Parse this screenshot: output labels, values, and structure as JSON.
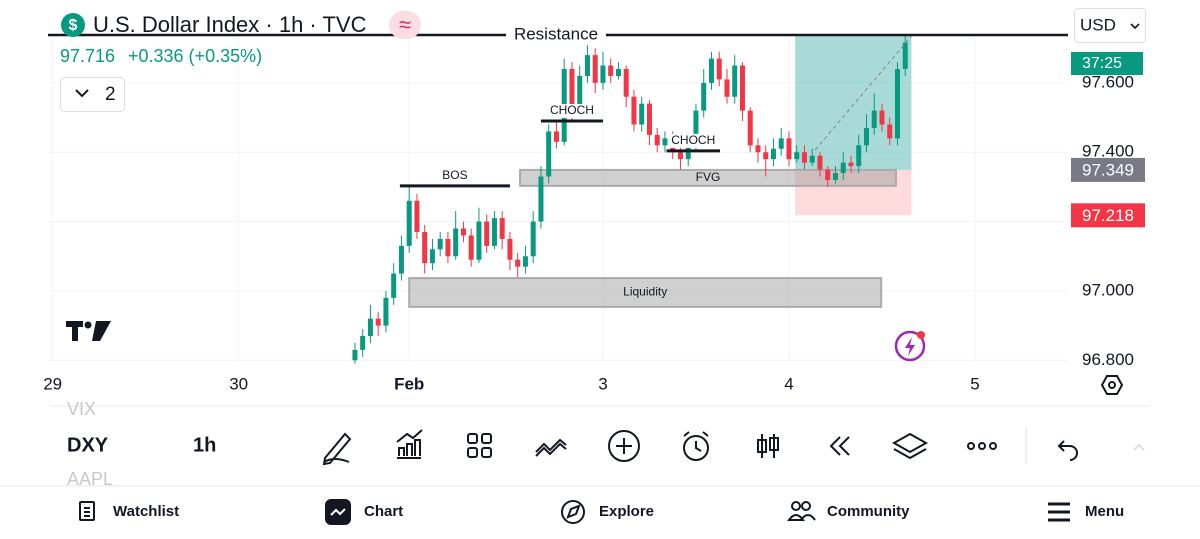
{
  "header": {
    "title": "U.S. Dollar Index · 1h · TVC",
    "price": 97.716,
    "change": "+0.336 (+0.35%)",
    "indicator_count": "2",
    "currency": "USD",
    "countdown": "37:25"
  },
  "toolbar": {
    "symbol": "DXY",
    "interval": "1h",
    "symbol_above": "VIX",
    "symbol_below": "AAPL"
  },
  "nav": [
    "Watchlist",
    "Chart",
    "Explore",
    "Community",
    "Menu"
  ],
  "chart_data": {
    "type": "candlestick",
    "up_color": "#089981",
    "down_color": "#f23645",
    "grid": true,
    "x": [
      -7,
      -6,
      -5,
      -4,
      -3,
      -2,
      -1,
      0,
      1,
      2,
      3,
      4,
      5,
      6,
      7,
      8,
      9,
      10,
      11,
      12,
      13,
      14,
      15,
      16,
      17,
      18,
      19,
      20,
      21,
      22,
      23,
      24,
      25,
      26,
      27,
      28,
      29,
      30,
      31,
      32,
      33,
      34,
      35,
      36,
      37,
      38,
      39,
      40,
      41,
      42,
      43,
      44,
      45,
      46,
      47,
      48,
      49,
      50,
      51,
      52,
      53,
      54,
      55,
      56,
      57,
      58,
      59,
      60,
      61,
      62,
      63,
      64
    ],
    "open": [
      96.8,
      96.83,
      96.87,
      96.92,
      96.9,
      96.98,
      97.05,
      97.13,
      97.26,
      97.17,
      97.08,
      97.12,
      97.15,
      97.1,
      97.18,
      97.16,
      97.09,
      97.2,
      97.13,
      97.21,
      97.15,
      97.09,
      97.07,
      97.1,
      97.2,
      97.33,
      97.46,
      97.43,
      97.64,
      97.53,
      97.62,
      97.68,
      97.6,
      97.65,
      97.62,
      97.64,
      97.56,
      97.48,
      97.54,
      97.45,
      97.42,
      97.44,
      97.4,
      97.38,
      97.42,
      97.52,
      97.6,
      97.67,
      97.61,
      97.56,
      97.65,
      97.52,
      97.42,
      97.4,
      97.38,
      97.41,
      97.44,
      97.38,
      97.4,
      97.37,
      97.39,
      97.35,
      97.32,
      97.34,
      97.37,
      97.36,
      97.42,
      97.47,
      97.52,
      97.48,
      97.44,
      97.64
    ],
    "high": [
      96.85,
      96.89,
      96.96,
      96.94,
      97.0,
      97.08,
      97.16,
      97.3,
      97.28,
      97.19,
      97.15,
      97.17,
      97.17,
      97.23,
      97.2,
      97.18,
      97.24,
      97.22,
      97.23,
      97.23,
      97.17,
      97.11,
      97.13,
      97.23,
      97.36,
      97.48,
      97.49,
      97.67,
      97.66,
      97.65,
      97.74,
      97.7,
      97.69,
      97.67,
      97.66,
      97.65,
      97.58,
      97.56,
      97.55,
      97.47,
      97.46,
      97.46,
      97.42,
      97.44,
      97.54,
      97.64,
      97.69,
      97.69,
      97.64,
      97.68,
      97.66,
      97.53,
      97.44,
      97.42,
      97.44,
      97.47,
      97.46,
      97.42,
      97.42,
      97.41,
      97.4,
      97.36,
      97.36,
      97.4,
      97.39,
      97.45,
      97.51,
      97.57,
      97.54,
      97.5,
      97.66,
      97.74
    ],
    "low": [
      96.79,
      96.81,
      96.85,
      96.87,
      96.88,
      96.96,
      97.03,
      97.11,
      97.15,
      97.05,
      97.06,
      97.1,
      97.08,
      97.09,
      97.14,
      97.07,
      97.08,
      97.11,
      97.12,
      97.12,
      97.06,
      97.04,
      97.05,
      97.08,
      97.18,
      97.31,
      97.41,
      97.42,
      97.49,
      97.51,
      97.6,
      97.57,
      97.58,
      97.6,
      97.61,
      97.53,
      97.46,
      97.46,
      97.42,
      97.4,
      97.4,
      97.38,
      97.35,
      97.36,
      97.4,
      97.5,
      97.58,
      97.59,
      97.54,
      97.54,
      97.49,
      97.4,
      97.37,
      97.33,
      97.36,
      97.39,
      97.36,
      97.37,
      97.35,
      97.36,
      97.33,
      97.3,
      97.31,
      97.32,
      97.34,
      97.34,
      97.4,
      97.45,
      97.46,
      97.42,
      97.42,
      97.62
    ],
    "close": [
      96.83,
      96.87,
      96.92,
      96.9,
      96.98,
      97.05,
      97.13,
      97.26,
      97.17,
      97.08,
      97.12,
      97.15,
      97.1,
      97.18,
      97.16,
      97.09,
      97.2,
      97.13,
      97.21,
      97.15,
      97.09,
      97.07,
      97.1,
      97.2,
      97.33,
      97.46,
      97.43,
      97.64,
      97.53,
      97.62,
      97.68,
      97.6,
      97.65,
      97.62,
      97.64,
      97.56,
      97.48,
      97.54,
      97.45,
      97.42,
      97.44,
      97.4,
      97.38,
      97.42,
      97.52,
      97.6,
      97.67,
      97.61,
      97.56,
      97.65,
      97.52,
      97.42,
      97.4,
      97.38,
      97.41,
      97.44,
      97.38,
      97.4,
      97.37,
      97.39,
      97.35,
      97.32,
      97.34,
      97.37,
      97.36,
      97.42,
      97.47,
      97.52,
      97.48,
      97.44,
      97.64,
      97.716
    ],
    "xlim": [
      -46.6,
      85
    ],
    "xticks": [
      {
        "value": -46,
        "label": "29"
      },
      {
        "value": -22,
        "label": "30"
      },
      {
        "value": 0,
        "label": "Feb"
      },
      {
        "value": 25,
        "label": "3"
      },
      {
        "value": 49,
        "label": "4"
      },
      {
        "value": 73,
        "label": "5"
      }
    ],
    "ylim": [
      96.795,
      97.741
    ],
    "yticks": [
      {
        "value": 97.6,
        "label": "97.600"
      },
      {
        "value": 97.4,
        "label": "97.400"
      },
      {
        "value": 97.2,
        "label": "97.200"
      },
      {
        "value": 97.0,
        "label": "97.000"
      },
      {
        "value": 96.8,
        "label": "96.800"
      }
    ],
    "zones": [
      {
        "label": "FVG",
        "x": [
          14.3,
          62.8
        ],
        "y": [
          97.303,
          97.349
        ]
      },
      {
        "label": "Liquidity",
        "x": [
          0,
          60.9
        ],
        "y": [
          96.954,
          97.037
        ]
      }
    ],
    "lines": [
      {
        "label": "BOS",
        "x": [
          -1.2,
          13
        ],
        "y": 97.303
      },
      {
        "label": "CHOCH",
        "x": [
          17,
          25
        ],
        "y": 97.49
      },
      {
        "label": "CHOCH",
        "x": [
          33.2,
          40.1
        ],
        "y": 97.404
      },
      {
        "label": "Resistance",
        "x": [
          -46.6,
          85
        ],
        "y": 97.738
      }
    ],
    "position": {
      "x": [
        49.8,
        64.8
      ],
      "entry": 97.349,
      "stop": 97.218,
      "target": 97.735
    }
  }
}
